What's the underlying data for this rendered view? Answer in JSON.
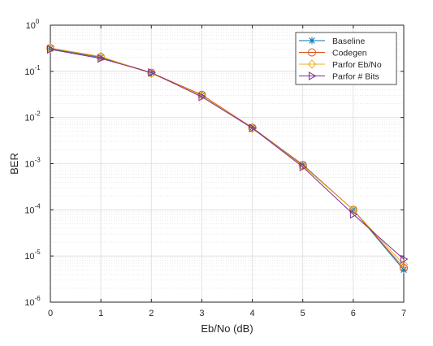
{
  "chart_data": {
    "type": "line",
    "xlabel": "Eb/No (dB)",
    "ylabel": "BER",
    "x": [
      0,
      1,
      2,
      3,
      4,
      5,
      6,
      7
    ],
    "xlim": [
      0,
      7
    ],
    "ylim": [
      1e-06,
      1
    ],
    "yscale": "log",
    "grid": "major and minor",
    "legend_position": "top-right",
    "xticks": [
      "0",
      "1",
      "2",
      "3",
      "4",
      "5",
      "6",
      "7"
    ],
    "yticks": [
      {
        "base": "10",
        "exp": "-6"
      },
      {
        "base": "10",
        "exp": "-5"
      },
      {
        "base": "10",
        "exp": "-4"
      },
      {
        "base": "10",
        "exp": "-3"
      },
      {
        "base": "10",
        "exp": "-2"
      },
      {
        "base": "10",
        "exp": "-1"
      },
      {
        "base": "10",
        "exp": "0"
      }
    ],
    "series": [
      {
        "name": "Baseline",
        "color": "#0072BD",
        "marker": "asterisk",
        "values": [
          0.31,
          0.2,
          0.092,
          0.03,
          0.006,
          0.00095,
          0.0001,
          5e-06
        ]
      },
      {
        "name": "Codegen",
        "color": "#D95319",
        "marker": "circle",
        "values": [
          0.32,
          0.205,
          0.093,
          0.031,
          0.006,
          0.00093,
          0.0001,
          5.5e-06
        ]
      },
      {
        "name": "Parfor Eb/No",
        "color": "#EDB120",
        "marker": "diamond",
        "values": [
          0.32,
          0.21,
          0.09,
          0.03,
          0.0058,
          0.0009,
          0.0001,
          6.5e-06
        ]
      },
      {
        "name": "Parfor # Bits",
        "color": "#7E2F8E",
        "marker": "triangle-right",
        "values": [
          0.3,
          0.19,
          0.094,
          0.028,
          0.0059,
          0.00085,
          8e-05,
          8.5e-06
        ]
      }
    ]
  }
}
